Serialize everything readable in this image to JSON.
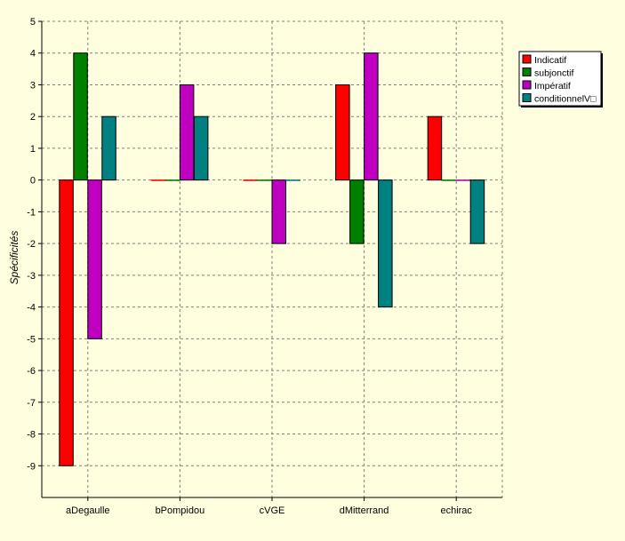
{
  "chart_data": {
    "type": "bar",
    "title": "",
    "xlabel": "",
    "ylabel": "Spécificités",
    "ylim": [
      -10,
      5
    ],
    "yticks": [
      5,
      4,
      3,
      2,
      1,
      0,
      -1,
      -2,
      -3,
      -4,
      -5,
      -6,
      -7,
      -8,
      -9
    ],
    "grid": true,
    "legend_position": "top-right",
    "categories": [
      "aDegaulle",
      "bPompidou",
      "cVGE",
      "dMitterrand",
      "echirac"
    ],
    "series": [
      {
        "name": "Indicatif",
        "color": "#ff0000",
        "values": [
          -9,
          0,
          0,
          3,
          2
        ]
      },
      {
        "name": "subjonctif",
        "color": "#008000",
        "values": [
          4,
          0,
          0,
          -2,
          0
        ]
      },
      {
        "name": "Impératif",
        "color": "#c000c0",
        "values": [
          -5,
          3,
          -2,
          4,
          0
        ]
      },
      {
        "name": "conditionnelV□",
        "color": "#008080",
        "values": [
          2,
          2,
          0,
          -4,
          -2
        ]
      }
    ],
    "colors": {
      "background": "#ffffe0",
      "grid": "#808080",
      "axis": "#000000"
    }
  }
}
